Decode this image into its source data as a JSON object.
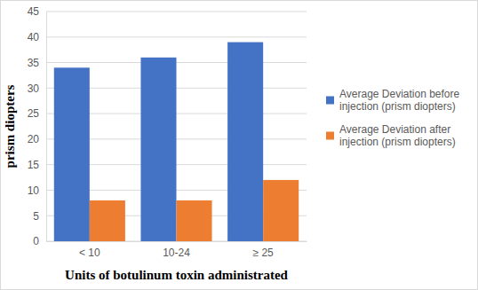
{
  "chart_data": {
    "type": "bar",
    "categories": [
      "< 10",
      "10-24",
      "≥ 25"
    ],
    "series": [
      {
        "name": "Average Deviation before injection (prism diopters)",
        "color": "#4472c4",
        "values": [
          34,
          36,
          39
        ]
      },
      {
        "name": "Average Deviation after injection (prism diopters)",
        "color": "#ed7d31",
        "values": [
          8,
          8,
          12
        ]
      }
    ],
    "x_label": "Units of botulinum toxin administrated",
    "y_label": "prism diopters",
    "ylim": [
      0,
      45
    ],
    "yticks": [
      0,
      5,
      10,
      15,
      20,
      25,
      30,
      35,
      40,
      45
    ],
    "grid": true,
    "legend": "right"
  }
}
